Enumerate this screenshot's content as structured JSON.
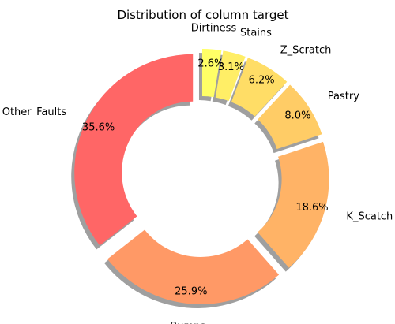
{
  "chart_data": {
    "type": "pie",
    "donut": true,
    "title": "Distribution of column target",
    "slices": [
      {
        "label": "Other_Faults",
        "value": 35.6,
        "pct_label": "35.6%",
        "color": "#ff6666"
      },
      {
        "label": "Bumps",
        "value": 25.9,
        "pct_label": "25.9%",
        "color": "#ff9966"
      },
      {
        "label": "K_Scatch",
        "value": 18.6,
        "pct_label": "18.6%",
        "color": "#ffb366"
      },
      {
        "label": "Pastry",
        "value": 8.0,
        "pct_label": "8.0%",
        "color": "#ffcc66"
      },
      {
        "label": "Z_Scratch",
        "value": 6.2,
        "pct_label": "6.2%",
        "color": "#ffdd66"
      },
      {
        "label": "Stains",
        "value": 3.1,
        "pct_label": "3.1%",
        "color": "#ffee66"
      },
      {
        "label": "Dirtiness",
        "value": 2.6,
        "pct_label": "2.6%",
        "color": "#ffff66"
      }
    ],
    "shadow": true,
    "exploded": true,
    "start_angle_deg": 90,
    "direction": "counterclockwise"
  }
}
